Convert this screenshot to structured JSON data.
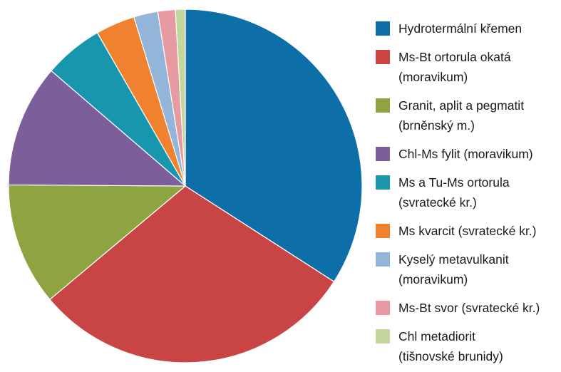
{
  "chart_data": {
    "type": "pie",
    "title": "",
    "start": "12 o'clock",
    "direction": "clockwise",
    "legend_position": "right",
    "series": [
      {
        "name": "Hydrotermální křemen",
        "lines": [
          "Hydrotermální křemen"
        ],
        "value": 34.1,
        "color": "#0e6fa8"
      },
      {
        "name": "Ms-Bt ortorula okatá (moravikum)",
        "lines": [
          "Ms-Bt ortorula okatá",
          "(moravikum)"
        ],
        "value": 29.8,
        "color": "#c94545"
      },
      {
        "name": "Granit, aplit a pegmatit (brněnský m.)",
        "lines": [
          "Granit, aplit a pegmatit",
          "(brněnský m.)"
        ],
        "value": 11.2,
        "color": "#8da441"
      },
      {
        "name": "Chl-Ms fylit (moravikum)",
        "lines": [
          "Chl-Ms fylit (moravikum)"
        ],
        "value": 11.2,
        "color": "#7b5e9a"
      },
      {
        "name": "Ms a Tu-Ms ortorula (svratecké kr.)",
        "lines": [
          "Ms a Tu-Ms ortorula",
          "(svratecké kr.)"
        ],
        "value": 5.4,
        "color": "#1796ad"
      },
      {
        "name": "Ms kvarcit (svratecké kr.)",
        "lines": [
          "Ms kvarcit (svratecké kr.)"
        ],
        "value": 3.6,
        "color": "#f0822f"
      },
      {
        "name": "Kyselý metavulkanit (moravikum)",
        "lines": [
          "Kyselý metavulkanit",
          "(moravikum)"
        ],
        "value": 2.2,
        "color": "#93b5d9"
      },
      {
        "name": "Ms-Bt svor (svratecké kr.)",
        "lines": [
          "Ms-Bt svor (svratecké kr.)"
        ],
        "value": 1.6,
        "color": "#e79aa2"
      },
      {
        "name": "Chl metadiorit (tišnovské brunidy)",
        "lines": [
          "Chl metadiorit",
          "(tišnovské brunidy)"
        ],
        "value": 0.9,
        "color": "#c3d69b"
      }
    ]
  }
}
